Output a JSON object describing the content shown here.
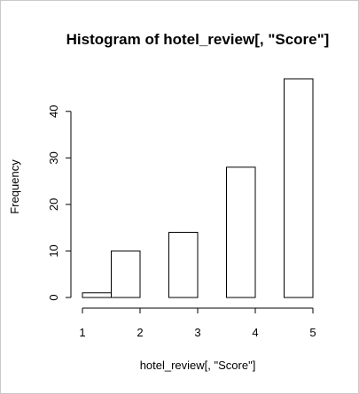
{
  "chart_data": {
    "type": "bar",
    "title": "Histogram of hotel_review[, \"Score\"]",
    "xlabel": "hotel_review[, \"Score\"]",
    "ylabel": "Frequency",
    "bins": [
      {
        "x_start": 1.0,
        "x_end": 1.5,
        "value": 1
      },
      {
        "x_start": 1.5,
        "x_end": 2.0,
        "value": 10
      },
      {
        "x_start": 2.0,
        "x_end": 2.5,
        "value": 0
      },
      {
        "x_start": 2.5,
        "x_end": 3.0,
        "value": 14
      },
      {
        "x_start": 3.0,
        "x_end": 3.5,
        "value": 0
      },
      {
        "x_start": 3.5,
        "x_end": 4.0,
        "value": 28
      },
      {
        "x_start": 4.0,
        "x_end": 4.5,
        "value": 0
      },
      {
        "x_start": 4.5,
        "x_end": 5.0,
        "value": 47
      }
    ],
    "x_ticks": [
      1,
      2,
      3,
      4,
      5
    ],
    "y_ticks": [
      0,
      10,
      20,
      30,
      40
    ],
    "xlim": [
      1,
      5
    ],
    "ylim": [
      0,
      47
    ],
    "grid": false
  }
}
